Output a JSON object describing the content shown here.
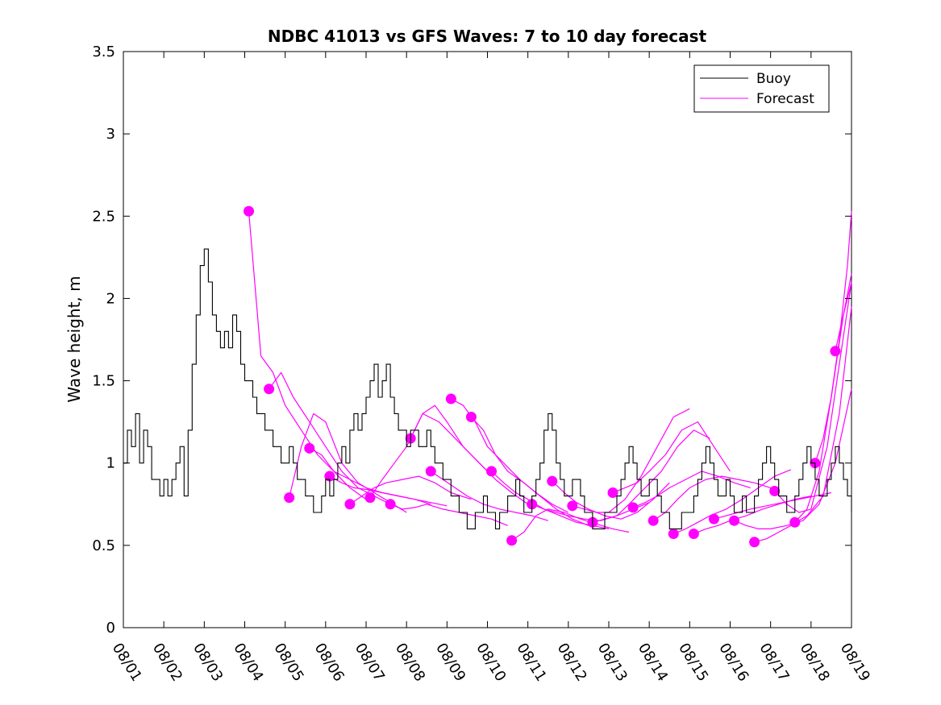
{
  "chart_data": {
    "type": "line",
    "title": "NDBC 41013 vs GFS Waves: 7 to 10 day forecast",
    "xlabel": "",
    "ylabel": "Wave height, m",
    "xlim": [
      0,
      18
    ],
    "ylim": [
      0,
      3.5
    ],
    "x_tick_values": [
      0,
      1,
      2,
      3,
      4,
      5,
      6,
      7,
      8,
      9,
      10,
      11,
      12,
      13,
      14,
      15,
      16,
      17,
      18
    ],
    "x_tick_labels": [
      "08/01",
      "08/02",
      "08/03",
      "08/04",
      "08/05",
      "08/06",
      "08/07",
      "08/08",
      "08/09",
      "08/10",
      "08/11",
      "08/12",
      "08/13",
      "08/14",
      "08/15",
      "08/16",
      "08/17",
      "08/18",
      "08/19"
    ],
    "y_ticks": [
      0,
      0.5,
      1,
      1.5,
      2,
      2.5,
      3,
      3.5
    ],
    "y_tick_labels": [
      "0",
      "0.5",
      "1",
      "1.5",
      "2",
      "2.5",
      "3",
      "3.5"
    ],
    "grid": false,
    "legend": {
      "location": "top-right",
      "entries": [
        "Buoy",
        "Forecast"
      ]
    },
    "colors": {
      "buoy": "#000000",
      "forecast": "#ff00ff"
    },
    "series": [
      {
        "name": "Buoy",
        "color": "#000000",
        "x": [
          0,
          0.1,
          0.2,
          0.3,
          0.4,
          0.5,
          0.6,
          0.7,
          0.8,
          0.9,
          1.0,
          1.1,
          1.2,
          1.3,
          1.4,
          1.5,
          1.6,
          1.7,
          1.8,
          1.9,
          2.0,
          2.1,
          2.2,
          2.3,
          2.4,
          2.5,
          2.6,
          2.7,
          2.8,
          2.9,
          3.0,
          3.1,
          3.2,
          3.3,
          3.4,
          3.5,
          3.6,
          3.7,
          3.8,
          3.9,
          4.0,
          4.1,
          4.2,
          4.3,
          4.4,
          4.5,
          4.6,
          4.7,
          4.8,
          4.9,
          5.0,
          5.1,
          5.2,
          5.3,
          5.4,
          5.5,
          5.6,
          5.7,
          5.8,
          5.9,
          6.0,
          6.1,
          6.2,
          6.3,
          6.4,
          6.5,
          6.6,
          6.7,
          6.8,
          6.9,
          7.0,
          7.1,
          7.2,
          7.3,
          7.4,
          7.5,
          7.6,
          7.7,
          7.8,
          7.9,
          8.0,
          8.1,
          8.2,
          8.3,
          8.4,
          8.5,
          8.6,
          8.7,
          8.8,
          8.9,
          9.0,
          9.1,
          9.2,
          9.3,
          9.4,
          9.5,
          9.6,
          9.7,
          9.8,
          9.9,
          10.0,
          10.1,
          10.2,
          10.3,
          10.4,
          10.5,
          10.6,
          10.7,
          10.8,
          10.9,
          11.0,
          11.1,
          11.2,
          11.3,
          11.4,
          11.5,
          11.6,
          11.7,
          11.8,
          11.9,
          12.0,
          12.1,
          12.2,
          12.3,
          12.4,
          12.5,
          12.6,
          12.7,
          12.8,
          12.9,
          13.0,
          13.1,
          13.2,
          13.3,
          13.4,
          13.5,
          13.6,
          13.7,
          13.8,
          13.9,
          14.0,
          14.1,
          14.2,
          14.3,
          14.4,
          14.5,
          14.6,
          14.7,
          14.8,
          14.9,
          15.0,
          15.1,
          15.2,
          15.3,
          15.4,
          15.5,
          15.6,
          15.7,
          15.8,
          15.9,
          16.0,
          16.1,
          16.2,
          16.3,
          16.4,
          16.5,
          16.6,
          16.7,
          16.8,
          16.9,
          17.0,
          17.1,
          17.2,
          17.3,
          17.4,
          17.5,
          17.6,
          17.7,
          17.8,
          17.9,
          18.0
        ],
        "values": [
          1.0,
          1.2,
          1.1,
          1.3,
          1.0,
          1.2,
          1.1,
          0.9,
          0.9,
          0.8,
          0.9,
          0.8,
          0.9,
          1.0,
          1.1,
          0.8,
          1.2,
          1.6,
          1.9,
          2.2,
          2.3,
          2.1,
          1.9,
          1.8,
          1.7,
          1.8,
          1.7,
          1.9,
          1.8,
          1.6,
          1.5,
          1.5,
          1.4,
          1.3,
          1.3,
          1.2,
          1.2,
          1.1,
          1.1,
          1.0,
          1.0,
          1.1,
          1.0,
          0.9,
          0.9,
          0.8,
          0.8,
          0.7,
          0.7,
          0.8,
          0.9,
          0.8,
          0.9,
          1.0,
          1.1,
          1.0,
          1.2,
          1.3,
          1.2,
          1.3,
          1.4,
          1.5,
          1.6,
          1.4,
          1.5,
          1.6,
          1.4,
          1.3,
          1.2,
          1.2,
          1.1,
          1.2,
          1.2,
          1.1,
          1.1,
          1.2,
          1.1,
          1.0,
          1.0,
          0.9,
          0.9,
          0.8,
          0.8,
          0.7,
          0.7,
          0.6,
          0.6,
          0.7,
          0.7,
          0.8,
          0.7,
          0.7,
          0.6,
          0.7,
          0.7,
          0.8,
          0.8,
          0.9,
          0.8,
          0.7,
          0.7,
          0.8,
          0.9,
          1.0,
          1.2,
          1.3,
          1.2,
          1.0,
          0.9,
          0.8,
          0.8,
          0.9,
          0.9,
          0.8,
          0.7,
          0.7,
          0.6,
          0.6,
          0.6,
          0.7,
          0.7,
          0.7,
          0.8,
          0.9,
          1.0,
          1.1,
          1.0,
          0.9,
          0.8,
          0.8,
          0.9,
          0.9,
          0.8,
          0.7,
          0.7,
          0.6,
          0.6,
          0.6,
          0.7,
          0.7,
          0.7,
          0.8,
          0.9,
          1.0,
          1.1,
          1.0,
          0.9,
          0.8,
          0.8,
          0.9,
          0.8,
          0.7,
          0.7,
          0.8,
          0.7,
          0.7,
          0.8,
          0.9,
          1.0,
          1.1,
          1.0,
          0.9,
          0.8,
          0.8,
          0.7,
          0.7,
          0.8,
          0.9,
          1.0,
          1.1,
          1.0,
          0.9,
          0.8,
          0.8,
          0.9,
          1.0,
          1.1,
          1.0,
          0.9,
          0.8,
          0.7
        ]
      }
    ],
    "forecast_runs": [
      {
        "x": [
          3.1,
          3.4,
          3.7,
          4.0,
          4.4,
          4.8,
          5.2,
          5.6,
          6.0
        ],
        "values": [
          2.53,
          1.65,
          1.55,
          1.35,
          1.2,
          1.05,
          0.95,
          0.85,
          0.78
        ]
      },
      {
        "x": [
          3.6,
          3.9,
          4.2,
          4.6,
          5.0,
          5.4,
          5.8,
          6.2,
          6.6
        ],
        "values": [
          1.45,
          1.55,
          1.4,
          1.25,
          1.1,
          0.95,
          0.85,
          0.8,
          0.75
        ]
      },
      {
        "x": [
          4.1,
          4.4,
          4.7,
          5.0,
          5.4,
          5.8,
          6.2,
          6.6,
          7.0
        ],
        "values": [
          0.79,
          1.1,
          1.3,
          1.25,
          1.0,
          0.88,
          0.82,
          0.76,
          0.7
        ]
      },
      {
        "x": [
          4.6,
          4.9,
          5.2,
          5.6,
          6.0,
          6.4,
          6.8,
          7.2,
          7.6
        ],
        "values": [
          1.09,
          1.05,
          0.95,
          0.9,
          0.85,
          0.82,
          0.8,
          0.78,
          0.75
        ]
      },
      {
        "x": [
          5.1,
          5.4,
          5.7,
          6.0,
          6.4,
          6.8,
          7.2,
          7.6,
          8.0
        ],
        "values": [
          0.92,
          0.88,
          0.85,
          0.84,
          0.82,
          0.8,
          0.78,
          0.76,
          0.74
        ]
      },
      {
        "x": [
          5.6,
          5.9,
          6.2,
          6.5,
          6.9,
          7.3,
          7.7,
          8.1,
          8.6
        ],
        "values": [
          0.75,
          0.8,
          0.85,
          0.88,
          0.9,
          0.92,
          0.88,
          0.82,
          0.78
        ]
      },
      {
        "x": [
          6.1,
          6.4,
          6.7,
          7.0,
          7.4,
          7.8,
          8.2,
          8.6,
          9.0
        ],
        "values": [
          0.79,
          0.9,
          1.0,
          1.1,
          1.3,
          1.25,
          1.15,
          1.05,
          0.95
        ]
      },
      {
        "x": [
          6.6,
          6.9,
          7.2,
          7.5,
          7.9,
          8.3,
          8.7,
          9.1,
          9.5
        ],
        "values": [
          0.75,
          0.72,
          0.73,
          0.75,
          0.72,
          0.7,
          0.68,
          0.66,
          0.62
        ]
      },
      {
        "x": [
          7.1,
          7.4,
          7.7,
          8.0,
          8.4,
          8.8,
          9.2,
          9.6,
          10.0
        ],
        "values": [
          1.15,
          1.3,
          1.35,
          1.25,
          1.1,
          1.0,
          0.9,
          0.82,
          0.75
        ]
      },
      {
        "x": [
          7.6,
          7.9,
          8.2,
          8.5,
          8.9,
          9.3,
          9.7,
          10.1,
          10.5
        ],
        "values": [
          0.95,
          0.9,
          0.85,
          0.8,
          0.75,
          0.72,
          0.7,
          0.68,
          0.65
        ]
      },
      {
        "x": [
          8.1,
          8.4,
          8.7,
          9.0,
          9.4,
          9.8,
          10.2,
          10.6,
          11.0
        ],
        "values": [
          1.39,
          1.35,
          1.25,
          1.1,
          1.0,
          0.9,
          0.82,
          0.75,
          0.7
        ]
      },
      {
        "x": [
          8.6,
          8.9,
          9.2,
          9.5,
          9.9,
          10.3,
          10.7,
          11.1,
          11.5
        ],
        "values": [
          1.28,
          1.2,
          1.05,
          0.95,
          0.88,
          0.8,
          0.72,
          0.66,
          0.62
        ]
      },
      {
        "x": [
          9.1,
          9.4,
          9.7,
          10.0,
          10.4,
          10.8,
          11.2,
          11.6,
          12.0
        ],
        "values": [
          0.95,
          0.88,
          0.82,
          0.78,
          0.72,
          0.68,
          0.64,
          0.62,
          0.6
        ]
      },
      {
        "x": [
          9.6,
          9.9,
          10.2,
          10.5,
          10.9,
          11.3,
          11.7,
          12.1,
          12.5
        ],
        "values": [
          0.53,
          0.58,
          0.68,
          0.72,
          0.7,
          0.66,
          0.63,
          0.6,
          0.58
        ]
      },
      {
        "x": [
          10.1,
          10.4,
          10.7,
          11.0,
          11.4,
          11.8,
          12.2,
          12.6,
          13.0
        ],
        "values": [
          0.75,
          0.72,
          0.7,
          0.68,
          0.66,
          0.65,
          0.68,
          0.72,
          0.76
        ]
      },
      {
        "x": [
          10.6,
          10.9,
          11.2,
          11.5,
          11.9,
          12.3,
          12.7,
          13.1,
          13.5
        ],
        "values": [
          0.89,
          0.82,
          0.76,
          0.72,
          0.68,
          0.66,
          0.7,
          0.78,
          0.88
        ]
      },
      {
        "x": [
          11.1,
          11.4,
          11.7,
          12.0,
          12.4,
          12.8,
          13.2,
          13.6,
          14.0
        ],
        "values": [
          0.74,
          0.72,
          0.7,
          0.7,
          0.78,
          0.92,
          1.1,
          1.28,
          1.33
        ]
      },
      {
        "x": [
          11.6,
          11.9,
          12.2,
          12.5,
          12.9,
          13.3,
          13.7,
          14.1,
          14.5
        ],
        "values": [
          0.64,
          0.66,
          0.68,
          0.75,
          0.85,
          0.95,
          1.1,
          1.2,
          1.15
        ]
      },
      {
        "x": [
          12.1,
          12.4,
          12.7,
          13.0,
          13.4,
          13.8,
          14.2,
          14.6,
          15.0
        ],
        "values": [
          0.82,
          0.85,
          0.88,
          0.95,
          1.05,
          1.2,
          1.25,
          1.1,
          0.95
        ]
      },
      {
        "x": [
          12.6,
          12.9,
          13.2,
          13.5,
          13.9,
          14.3,
          14.7,
          15.1,
          15.5
        ],
        "values": [
          0.73,
          0.76,
          0.8,
          0.85,
          0.9,
          0.95,
          0.92,
          0.88,
          0.85
        ]
      },
      {
        "x": [
          13.1,
          13.4,
          13.7,
          14.0,
          14.4,
          14.8,
          15.2,
          15.6,
          16.0
        ],
        "values": [
          0.65,
          0.7,
          0.78,
          0.85,
          0.9,
          0.92,
          0.9,
          0.88,
          0.85
        ]
      },
      {
        "x": [
          13.6,
          13.9,
          14.2,
          14.5,
          14.9,
          15.3,
          15.7,
          16.1,
          16.5
        ],
        "values": [
          0.57,
          0.6,
          0.64,
          0.68,
          0.72,
          0.78,
          0.85,
          0.92,
          0.96
        ]
      },
      {
        "x": [
          14.1,
          14.4,
          14.7,
          15.0,
          15.4,
          15.8,
          16.2,
          16.6,
          17.0
        ],
        "values": [
          0.57,
          0.6,
          0.62,
          0.65,
          0.68,
          0.72,
          0.75,
          0.78,
          0.8
        ]
      },
      {
        "x": [
          14.6,
          14.9,
          15.2,
          15.5,
          15.9,
          16.3,
          16.7,
          17.1,
          17.5
        ],
        "values": [
          0.66,
          0.68,
          0.7,
          0.72,
          0.74,
          0.76,
          0.78,
          0.8,
          0.82
        ]
      },
      {
        "x": [
          15.1,
          15.4,
          15.7,
          16.0,
          16.4,
          16.8,
          17.2,
          17.6,
          18.0
        ],
        "values": [
          0.65,
          0.62,
          0.6,
          0.6,
          0.62,
          0.65,
          0.75,
          1.0,
          1.45
        ]
      },
      {
        "x": [
          15.6,
          15.9,
          16.2,
          16.5,
          16.9,
          17.3,
          17.7,
          18.0
        ],
        "values": [
          0.52,
          0.54,
          0.58,
          0.62,
          0.68,
          0.8,
          1.3,
          1.95
        ]
      },
      {
        "x": [
          16.1,
          16.4,
          16.7,
          17.0,
          17.4,
          17.7,
          18.0
        ],
        "values": [
          0.83,
          0.75,
          0.7,
          0.72,
          1.1,
          1.6,
          2.1
        ]
      },
      {
        "x": [
          16.6,
          16.9,
          17.2,
          17.5,
          17.8,
          18.0
        ],
        "values": [
          0.64,
          0.72,
          0.95,
          1.4,
          1.9,
          2.15
        ]
      },
      {
        "x": [
          17.1,
          17.3,
          17.5,
          17.7,
          17.9,
          18.0
        ],
        "values": [
          1.0,
          1.15,
          1.4,
          1.75,
          2.2,
          2.53
        ]
      },
      {
        "x": [
          17.6,
          17.8,
          18.0
        ],
        "values": [
          1.68,
          1.9,
          2.1
        ]
      }
    ]
  }
}
